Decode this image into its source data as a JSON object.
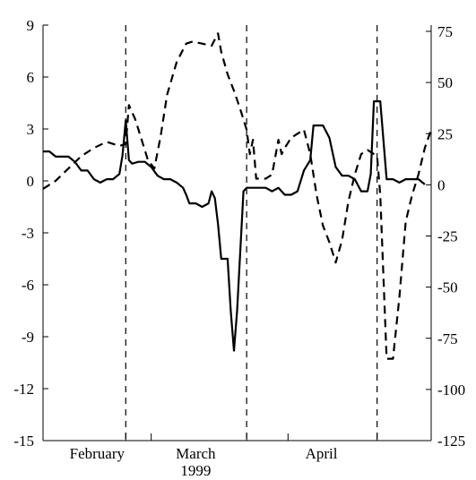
{
  "chart_data": {
    "type": "line",
    "title": "",
    "xlabel": "1999",
    "x_month_labels": [
      "February",
      "March",
      "April"
    ],
    "x_range": [
      0,
      122
    ],
    "left_axis": {
      "ylim": [
        -15,
        9
      ],
      "ticks": [
        9,
        6,
        3,
        0,
        -3,
        -6,
        -9,
        -12,
        -15
      ],
      "tick_labels": [
        "9",
        "6",
        "3",
        "0",
        "-3",
        "-6",
        "-9",
        "-12",
        "-15"
      ]
    },
    "right_axis": {
      "ylim": [
        -125,
        80
      ],
      "ticks": [
        75,
        50,
        25,
        0,
        -25,
        -50,
        -75,
        -100,
        -125
      ],
      "tick_labels": [
        "75",
        "50",
        "25",
        "0",
        "-25",
        "-50",
        "-75",
        "-100",
        "-125"
      ]
    },
    "vertical_dashed_lines_x": [
      26,
      64,
      105
    ],
    "x_minor_ticks": [
      26,
      34,
      64,
      77,
      105
    ],
    "grid": false,
    "series": [
      {
        "axis": "left",
        "style": "solid",
        "x": [
          0,
          2,
          4,
          6,
          8,
          10,
          12,
          14,
          16,
          18,
          20,
          22,
          24,
          25,
          26,
          27,
          28,
          30,
          32,
          34,
          36,
          38,
          40,
          42,
          44,
          45,
          46,
          48,
          50,
          52,
          53,
          54,
          55,
          56,
          58,
          59,
          60,
          61,
          63,
          64,
          65,
          66,
          68,
          70,
          72,
          74,
          76,
          78,
          80,
          82,
          84,
          85,
          86,
          88,
          90,
          92,
          94,
          96,
          98,
          100,
          102,
          103,
          104,
          106,
          108,
          110,
          112,
          114,
          116,
          118,
          120
        ],
        "values": [
          1.7,
          1.7,
          1.4,
          1.4,
          1.4,
          1.1,
          0.6,
          0.6,
          0.1,
          -0.1,
          0.1,
          0.1,
          0.4,
          1.5,
          3.5,
          1.2,
          1.0,
          1.1,
          1.1,
          0.8,
          0.3,
          0.1,
          0.1,
          -0.1,
          -0.4,
          -0.8,
          -1.3,
          -1.3,
          -1.5,
          -1.3,
          -0.6,
          -1.0,
          -2.5,
          -4.5,
          -4.5,
          -7.5,
          -9.8,
          -7.5,
          -0.6,
          -0.4,
          -0.4,
          -0.4,
          -0.4,
          -0.4,
          -0.6,
          -0.4,
          -0.8,
          -0.8,
          -0.6,
          0.6,
          1.2,
          3.2,
          3.2,
          3.2,
          2.5,
          0.8,
          0.3,
          0.3,
          0.1,
          -0.6,
          -0.6,
          0.4,
          4.6,
          4.6,
          0.1,
          0.1,
          -0.1,
          0.1,
          0.1,
          0.1,
          -0.2
        ]
      },
      {
        "axis": "right",
        "style": "dashed",
        "x": [
          0,
          4,
          8,
          12,
          16,
          20,
          24,
          26,
          27,
          29,
          31,
          33,
          35,
          37,
          39,
          42,
          45,
          47,
          50,
          53,
          55,
          56,
          58,
          60,
          62,
          64,
          65,
          66,
          67,
          68,
          70,
          72,
          74,
          75,
          76,
          78,
          80,
          82,
          84,
          86,
          88,
          90,
          92,
          94,
          96,
          98,
          100,
          102,
          104,
          105,
          106,
          108,
          110,
          112,
          114,
          116,
          118,
          120,
          122
        ],
        "values": [
          -2,
          2,
          8,
          14,
          18,
          21,
          19,
          20,
          39,
          32,
          22,
          12,
          8,
          24,
          44,
          60,
          69,
          70,
          69,
          68,
          74,
          65,
          54,
          46,
          37,
          27,
          15,
          22,
          3,
          3,
          3,
          5,
          22,
          15,
          18,
          23,
          25,
          27,
          15,
          -5,
          -20,
          -28,
          -38,
          -27,
          -8,
          5,
          15,
          17,
          15,
          14,
          -5,
          -85,
          -85,
          -55,
          -18,
          -5,
          5,
          18,
          27
        ]
      }
    ]
  }
}
